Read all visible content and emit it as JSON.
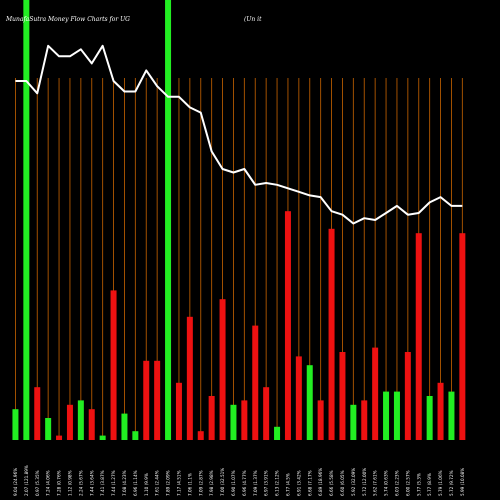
{
  "chart_data": {
    "type": "bar",
    "title": "MunafaSutra  Money Flow  Charts for UG",
    "subtitle": "(Un                                              it",
    "xlabel": "",
    "ylabel": "",
    "grid": true,
    "colors": {
      "background": "#000000",
      "up": "#22ee22",
      "down": "#ee1111",
      "grid": "#b35900",
      "line": "#ffffff",
      "text": "#ffffff"
    },
    "x": [
      "9.04 (24.96%",
      "2.07 (121.89%",
      "0.97 (5.35%",
      "7.24 (4.06%",
      "7.28 (0.76%",
      "1.12 (0.98%",
      "2.24 (5.67%",
      "7.44 (3.64%",
      "7.41 (3.87%",
      "7.44 (1.27%",
      "7.08 (4.23%",
      "6.96 (1.14%",
      "1.10 (9.9%",
      "7.61 (2.44%",
      "7.89 (2.09%",
      "7.17 (4.51%",
      "7.06 (1.1%",
      "7.09 (2.87%",
      "7.98 (2.98%",
      "7.00 (32.51%",
      "6.90 (1.07%",
      "6.96 (4.77%",
      "7.09 (1.37%",
      "6.97 (3.91%",
      "6.13 (2.12%",
      "6.77 (4.5%",
      "6.91 (3.42%",
      "6.68 (7.17%",
      "6.89 (18.96%",
      "6.66 (5.58%",
      "6.60 (6.05%",
      "5.92 (32.09%",
      "5.72 (12.00%",
      "5.62 (7.61%",
      "5.74 (0.63%",
      "6.03 (2.23%",
      "6.00 (2.57%",
      "5.77 (5.3%",
      "5.77 (8.9%",
      "5.79 (1.06%",
      "5.72 (9.72%",
      "5.99 (10.08%"
    ],
    "series": [
      {
        "values": [
          7,
          100,
          12,
          5,
          1,
          8,
          9,
          7,
          1,
          34,
          6,
          2,
          18,
          18,
          100,
          13,
          28,
          2,
          10,
          32,
          8,
          9,
          26,
          12,
          3,
          52,
          19,
          17,
          9,
          48,
          20,
          8,
          9,
          21,
          11,
          11,
          20,
          47,
          10,
          13,
          11,
          47
        ],
        "direction": [
          "up",
          "up",
          "down",
          "up",
          "down",
          "down",
          "up",
          "down",
          "up",
          "down",
          "up",
          "up",
          "down",
          "down",
          "up",
          "down",
          "down",
          "down",
          "down",
          "down",
          "up",
          "down",
          "down",
          "down",
          "up",
          "down",
          "down",
          "up",
          "down",
          "down",
          "down",
          "up",
          "down",
          "down",
          "up",
          "up",
          "down",
          "down",
          "up",
          "down",
          "up",
          "down"
        ]
      },
      {
        "type": "line",
        "values": [
          9.04,
          9.04,
          8.97,
          9.24,
          9.18,
          9.18,
          9.22,
          9.14,
          9.24,
          9.04,
          8.98,
          8.98,
          9.1,
          9.01,
          8.95,
          8.95,
          8.89,
          8.86,
          8.64,
          8.54,
          8.52,
          8.54,
          8.45,
          8.46,
          8.45,
          8.43,
          8.41,
          8.39,
          8.38,
          8.3,
          8.28,
          8.23,
          8.26,
          8.25,
          8.29,
          8.33,
          8.28,
          8.29,
          8.35,
          8.38,
          8.33,
          8.33
        ]
      }
    ],
    "ylim_line": [
      7.0,
      9.5
    ]
  }
}
